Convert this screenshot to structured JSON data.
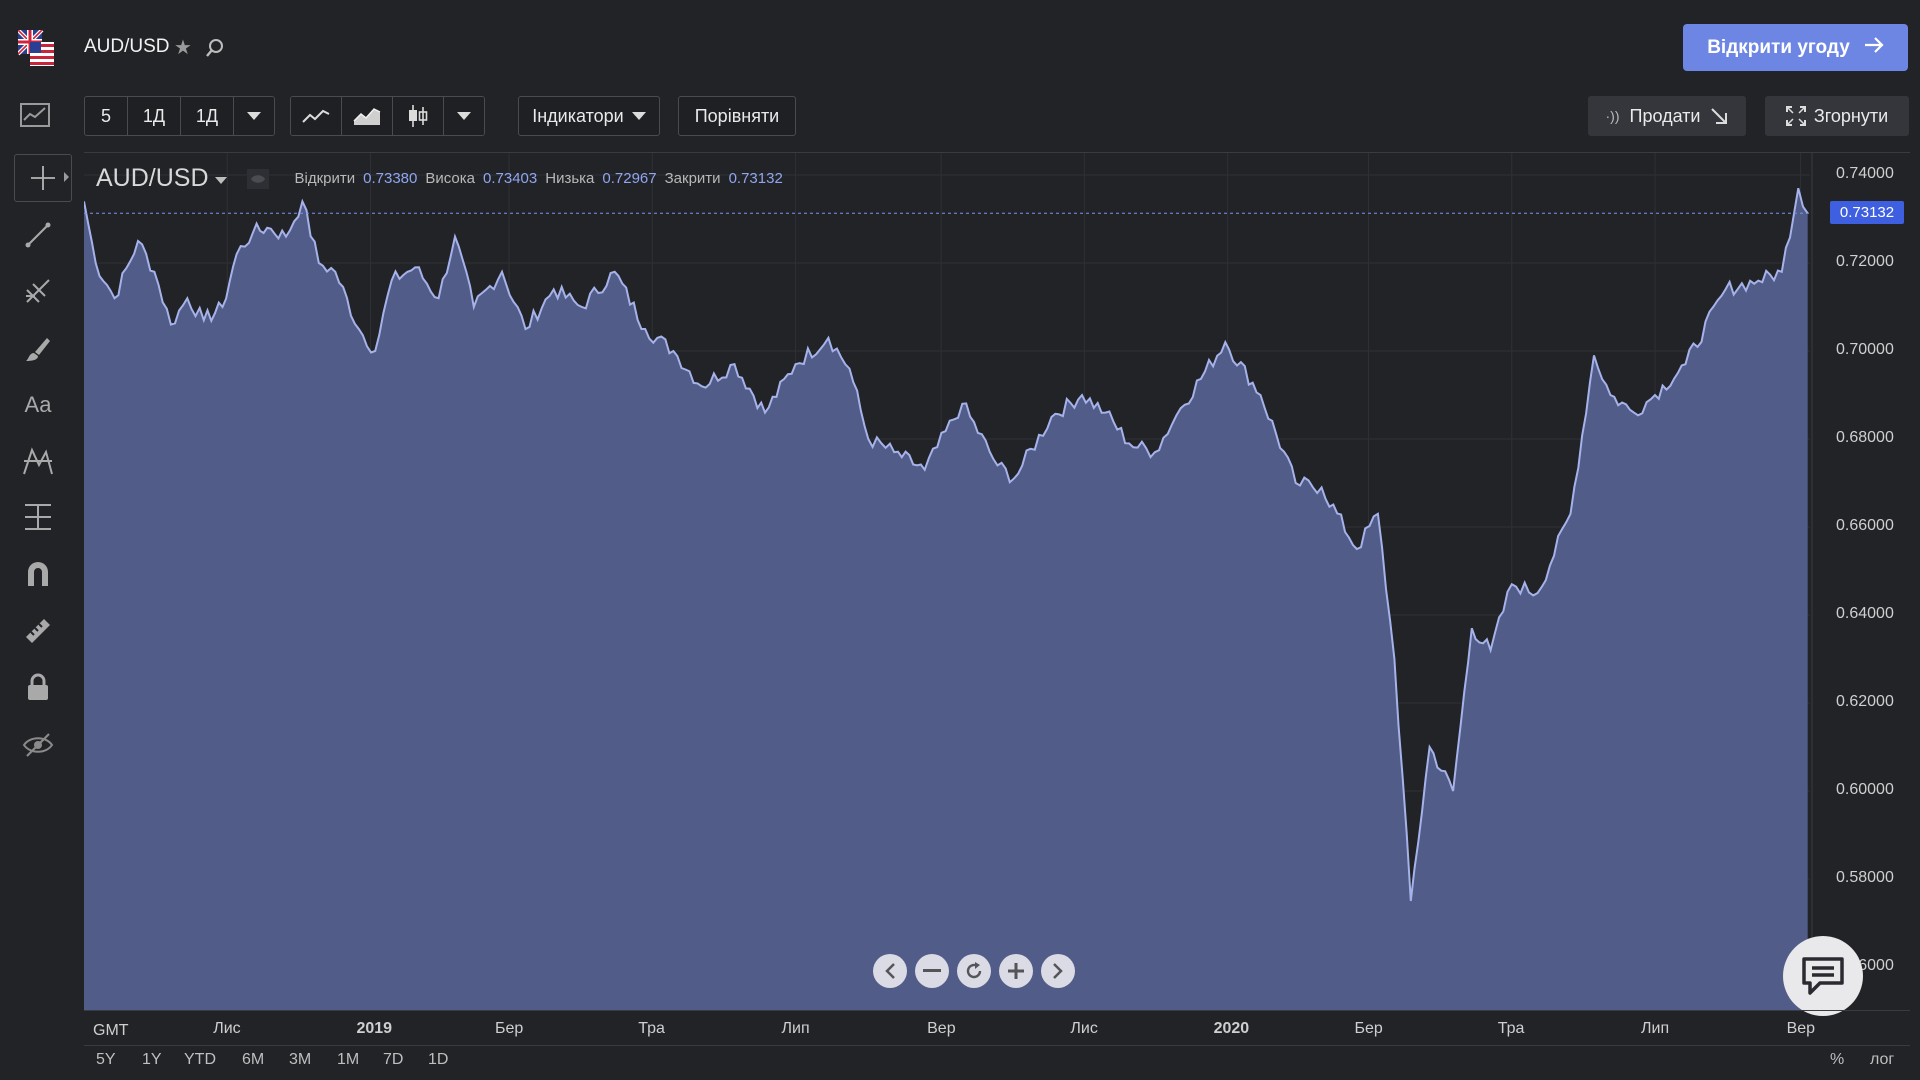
{
  "header": {
    "symbol": "AUD/USD",
    "open_trade_label": "Відкрити угоду",
    "flag_icon": "australia-usa-flag-icon"
  },
  "toolbar": {
    "intervals": [
      "5",
      "1Д",
      "1Д"
    ],
    "chart_types": [
      "line-chart-icon",
      "area-chart-icon",
      "candlestick-icon"
    ],
    "indicators_label": "Індикатори",
    "compare_label": "Порівняти",
    "sell_label": "Продати",
    "collapse_label": "Згорнути"
  },
  "drawing_tools": [
    "crosshair-icon",
    "trend-line-icon",
    "fib-tool-icon",
    "brush-icon",
    "text-tool-icon",
    "pattern-tool-icon",
    "measure-icon",
    "magnet-icon",
    "ruler-icon",
    "lock-icon",
    "hide-eye-icon"
  ],
  "legend": {
    "symbol": "AUD/USD",
    "open_label": "Відкрити",
    "open": "0.73380",
    "high_label": "Висока",
    "high": "0.73403",
    "low_label": "Низька",
    "low": "0.72967",
    "close_label": "Закрити",
    "close": "0.73132"
  },
  "current_price": "0.73132",
  "timezone": "GMT",
  "ranges": [
    "5Y",
    "1Y",
    "YTD",
    "6M",
    "3M",
    "1M",
    "7D",
    "1D"
  ],
  "scale_options": [
    "%",
    "лог"
  ],
  "colors": {
    "accent": "#6e86e3",
    "area_fill": "#525c88",
    "area_line": "#a6b3ea",
    "price_tag": "#3d5fe0"
  },
  "chart_data": {
    "type": "area",
    "ylim": [
      0.55,
      0.745
    ],
    "yticks": [
      "0.74000",
      "0.72000",
      "0.70000",
      "0.68000",
      "0.66000",
      "0.64000",
      "0.62000",
      "0.60000",
      "0.58000",
      "0.56000"
    ],
    "ytick_values": [
      0.74,
      0.72,
      0.7,
      0.68,
      0.66,
      0.64,
      0.62,
      0.6,
      0.58,
      0.56
    ],
    "x_labels": [
      "Лис",
      "2019",
      "Бер",
      "Тра",
      "Лип",
      "Вер",
      "Лис",
      "2020",
      "Бер",
      "Тра",
      "Лип",
      "Вер"
    ],
    "x_label_dates": [
      "2018-11-01",
      "2019-01-01",
      "2019-03-01",
      "2019-05-01",
      "2019-07-01",
      "2019-09-01",
      "2019-11-01",
      "2020-01-01",
      "2020-03-01",
      "2020-05-01",
      "2020-07-01",
      "2020-09-01"
    ],
    "points": [
      [
        "2018-09-01",
        0.734
      ],
      [
        "2018-09-06",
        0.72
      ],
      [
        "2018-09-14",
        0.712
      ],
      [
        "2018-09-24",
        0.725
      ],
      [
        "2018-10-01",
        0.718
      ],
      [
        "2018-10-08",
        0.706
      ],
      [
        "2018-10-15",
        0.712
      ],
      [
        "2018-10-22",
        0.707
      ],
      [
        "2018-10-30",
        0.71
      ],
      [
        "2018-11-05",
        0.722
      ],
      [
        "2018-11-12",
        0.727
      ],
      [
        "2018-11-18",
        0.728
      ],
      [
        "2018-11-26",
        0.726
      ],
      [
        "2018-12-03",
        0.734
      ],
      [
        "2018-12-10",
        0.72
      ],
      [
        "2018-12-17",
        0.718
      ],
      [
        "2018-12-27",
        0.705
      ],
      [
        "2019-01-03",
        0.7
      ],
      [
        "2019-01-10",
        0.716
      ],
      [
        "2019-01-20",
        0.719
      ],
      [
        "2019-01-30",
        0.712
      ],
      [
        "2019-02-06",
        0.726
      ],
      [
        "2019-02-14",
        0.71
      ],
      [
        "2019-02-26",
        0.718
      ],
      [
        "2019-03-08",
        0.705
      ],
      [
        "2019-03-20",
        0.714
      ],
      [
        "2019-04-01",
        0.71
      ],
      [
        "2019-04-15",
        0.718
      ],
      [
        "2019-04-28",
        0.705
      ],
      [
        "2019-05-10",
        0.7
      ],
      [
        "2019-05-22",
        0.692
      ],
      [
        "2019-06-05",
        0.697
      ],
      [
        "2019-06-18",
        0.686
      ],
      [
        "2019-07-01",
        0.697
      ],
      [
        "2019-07-15",
        0.703
      ],
      [
        "2019-07-24",
        0.696
      ],
      [
        "2019-08-01",
        0.68
      ],
      [
        "2019-08-12",
        0.677
      ],
      [
        "2019-08-25",
        0.673
      ],
      [
        "2019-09-10",
        0.688
      ],
      [
        "2019-09-25",
        0.674
      ],
      [
        "2019-10-02",
        0.671
      ],
      [
        "2019-10-18",
        0.685
      ],
      [
        "2019-10-31",
        0.69
      ],
      [
        "2019-11-10",
        0.686
      ],
      [
        "2019-11-20",
        0.679
      ],
      [
        "2019-12-01",
        0.677
      ],
      [
        "2019-12-12",
        0.687
      ],
      [
        "2019-12-31",
        0.702
      ],
      [
        "2020-01-15",
        0.69
      ],
      [
        "2020-01-30",
        0.67
      ],
      [
        "2020-02-10",
        0.669
      ],
      [
        "2020-02-25",
        0.655
      ],
      [
        "2020-03-05",
        0.663
      ],
      [
        "2020-03-12",
        0.63
      ],
      [
        "2020-03-19",
        0.575
      ],
      [
        "2020-03-27",
        0.61
      ],
      [
        "2020-04-06",
        0.6
      ],
      [
        "2020-04-14",
        0.637
      ],
      [
        "2020-04-22",
        0.632
      ],
      [
        "2020-05-01",
        0.647
      ],
      [
        "2020-05-12",
        0.645
      ],
      [
        "2020-05-26",
        0.663
      ],
      [
        "2020-06-05",
        0.699
      ],
      [
        "2020-06-12",
        0.69
      ],
      [
        "2020-06-22",
        0.686
      ],
      [
        "2020-07-01",
        0.69
      ],
      [
        "2020-07-14",
        0.697
      ],
      [
        "2020-07-31",
        0.714
      ],
      [
        "2020-08-14",
        0.716
      ],
      [
        "2020-08-24",
        0.718
      ],
      [
        "2020-08-31",
        0.737
      ],
      [
        "2020-09-04",
        0.7313
      ]
    ]
  }
}
